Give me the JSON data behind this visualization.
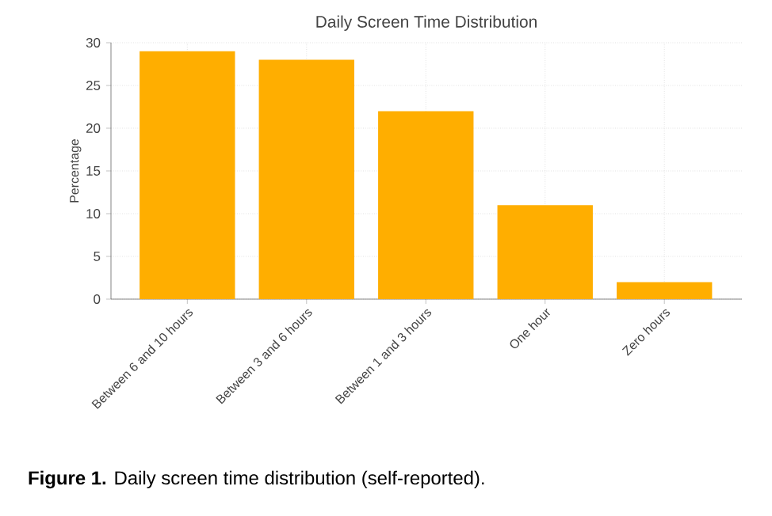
{
  "chart_data": {
    "type": "bar",
    "title": "Daily Screen Time Distribution",
    "ylabel": "Percentage",
    "categories": [
      "Between 6 and 10 hours",
      "Between 3 and 6 hours",
      "Between 1 and 3 hours",
      "One hour",
      "Zero hours"
    ],
    "values": [
      29,
      28,
      22,
      11,
      2
    ],
    "color": "#ffae00",
    "ylim": [
      0,
      30
    ],
    "yticks": [
      0,
      5,
      10,
      15,
      20,
      25,
      30
    ],
    "grid": true,
    "annotations": [
      "**Figure 1.** Daily screen time distribution (self-reported)."
    ]
  }
}
